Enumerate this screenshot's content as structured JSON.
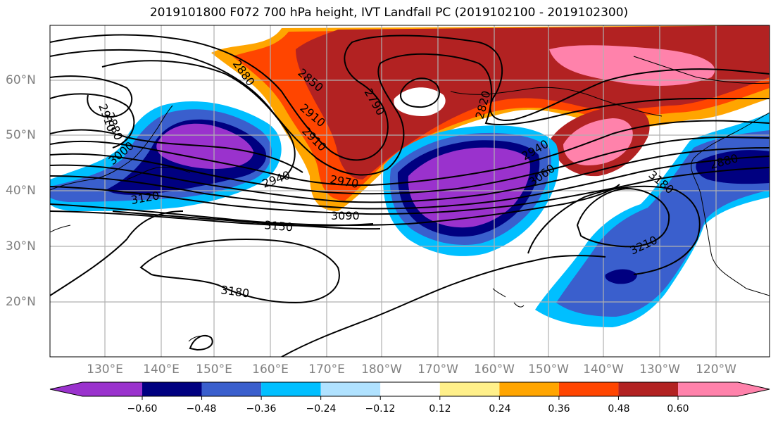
{
  "title": "2019101800 F072 700 hPa height, IVT Landfall PC (2019102100 - 2019102300)",
  "map": {
    "lat_labels": [
      "60°N",
      "50°N",
      "40°N",
      "30°N",
      "20°N"
    ],
    "lon_labels": [
      "130°E",
      "140°E",
      "150°E",
      "160°E",
      "170°E",
      "180°W",
      "170°W",
      "160°W",
      "150°W",
      "140°W",
      "130°W",
      "120°W"
    ],
    "contour_labels": [
      "2880",
      "2850",
      "2910",
      "2790",
      "2820",
      "2910",
      "2880",
      "2910",
      "3000",
      "2940",
      "2970",
      "3090",
      "3120",
      "3150",
      "3180",
      "3210",
      "3180",
      "3060",
      "2940",
      "2880"
    ],
    "grid": true,
    "field_colors": {
      "neg_060": "#9a32cd",
      "neg_048": "#000080",
      "neg_036": "#3a5fcd",
      "neg_024": "#00bfff",
      "neg_012": "#b0e2ff",
      "pos_012": "#fff08a",
      "pos_024": "#ffa500",
      "pos_036": "#ff4500",
      "pos_048": "#b22222",
      "pos_060": "#ff82ab"
    }
  },
  "colorbar": {
    "ticks": [
      "−0.60",
      "−0.48",
      "−0.36",
      "−0.24",
      "−0.12",
      "0.12",
      "0.24",
      "0.36",
      "0.48",
      "0.60"
    ],
    "colors": [
      "#9a32cd",
      "#000080",
      "#3a5fcd",
      "#00bfff",
      "#b0e2ff",
      "#ffffff",
      "#fff08a",
      "#ffa500",
      "#ff4500",
      "#b22222",
      "#ff82ab"
    ]
  }
}
